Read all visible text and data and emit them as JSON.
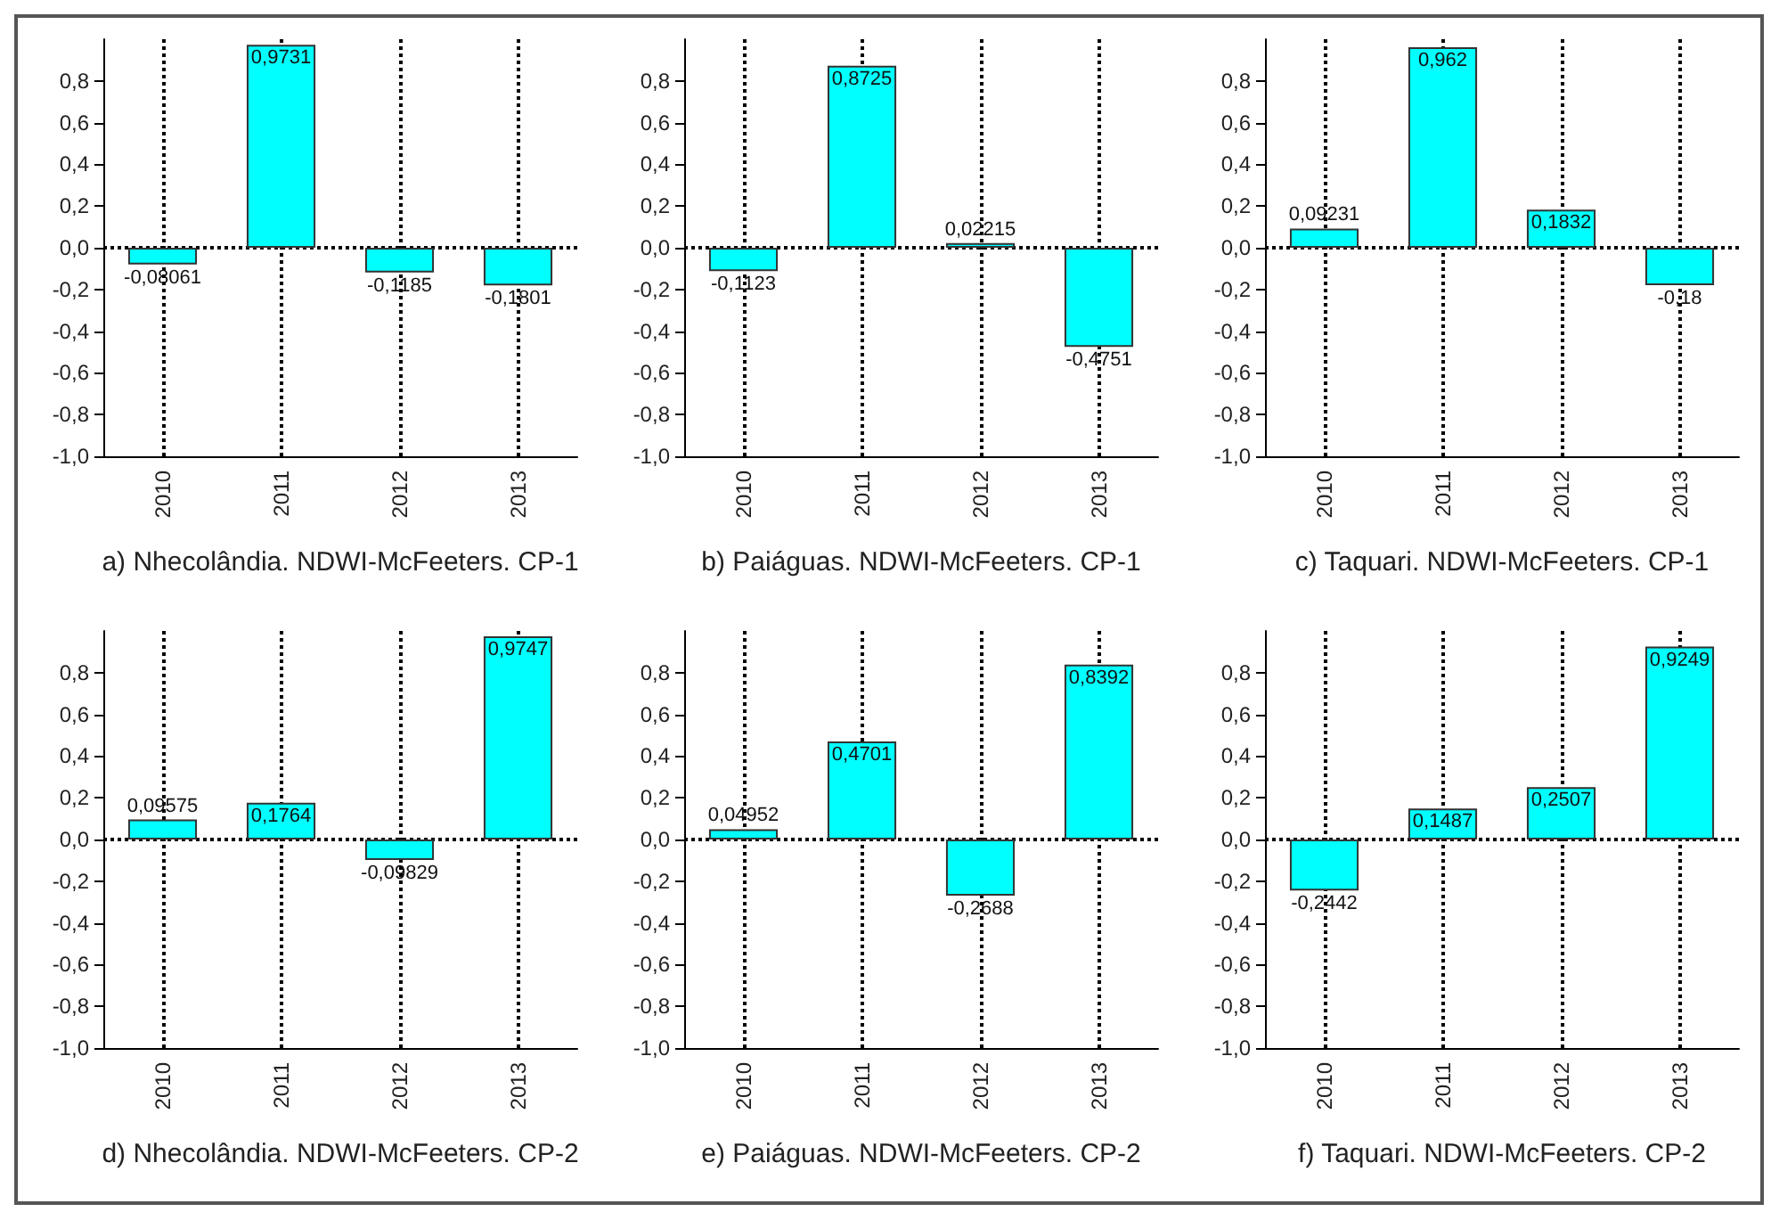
{
  "chart_data": [
    {
      "type": "bar",
      "xlabel": "a) Nhecolândia. NDWI-McFeeters. CP-1",
      "categories": [
        "2010",
        "2011",
        "2012",
        "2013"
      ],
      "values": [
        -0.08061,
        0.9731,
        -0.1185,
        -0.1801
      ],
      "value_labels": [
        "-0,08061",
        "0,9731",
        "-0,1185",
        "-0,1801"
      ],
      "color": "#00ffff",
      "ylim": [
        -1,
        1
      ],
      "yticks": [
        {
          "value": -1,
          "label": "-1,0"
        },
        {
          "value": -0.8,
          "label": "-0,8"
        },
        {
          "value": -0.6,
          "label": "-0,6"
        },
        {
          "value": -0.4,
          "label": "-0,4"
        },
        {
          "value": -0.2,
          "label": "-0,2"
        },
        {
          "value": 0,
          "label": "0,0"
        },
        {
          "value": 0.2,
          "label": "0,2"
        },
        {
          "value": 0.4,
          "label": "0,4"
        },
        {
          "value": 0.6,
          "label": "0,6"
        },
        {
          "value": 0.8,
          "label": "0,8"
        }
      ],
      "grid": "x",
      "ref_lines": [
        {
          "axis": "y",
          "value": 0,
          "line_style": "dotted"
        }
      ]
    },
    {
      "type": "bar",
      "xlabel": "b) Paiáguas. NDWI-McFeeters. CP-1",
      "categories": [
        "2010",
        "2011",
        "2012",
        "2013"
      ],
      "values": [
        -0.1123,
        0.8725,
        0.02215,
        -0.4751
      ],
      "value_labels": [
        "-0,1123",
        "0,8725",
        "0,02215",
        "-0,4751"
      ],
      "color": "#00ffff",
      "ylim": [
        -1,
        1
      ],
      "yticks": [
        {
          "value": -1,
          "label": "-1,0"
        },
        {
          "value": -0.8,
          "label": "-0,8"
        },
        {
          "value": -0.6,
          "label": "-0,6"
        },
        {
          "value": -0.4,
          "label": "-0,4"
        },
        {
          "value": -0.2,
          "label": "-0,2"
        },
        {
          "value": 0,
          "label": "0,0"
        },
        {
          "value": 0.2,
          "label": "0,2"
        },
        {
          "value": 0.4,
          "label": "0,4"
        },
        {
          "value": 0.6,
          "label": "0,6"
        },
        {
          "value": 0.8,
          "label": "0,8"
        }
      ],
      "grid": "x",
      "ref_lines": [
        {
          "axis": "y",
          "value": 0,
          "line_style": "dotted"
        }
      ]
    },
    {
      "type": "bar",
      "xlabel": "c) Taquari. NDWI-McFeeters. CP-1",
      "categories": [
        "2010",
        "2011",
        "2012",
        "2013"
      ],
      "values": [
        0.09231,
        0.962,
        0.1832,
        -0.18
      ],
      "value_labels": [
        "0,09231",
        "0,962",
        "0,1832",
        "-0,18"
      ],
      "color": "#00ffff",
      "ylim": [
        -1,
        1
      ],
      "yticks": [
        {
          "value": -1,
          "label": "-1,0"
        },
        {
          "value": -0.8,
          "label": "-0,8"
        },
        {
          "value": -0.6,
          "label": "-0,6"
        },
        {
          "value": -0.4,
          "label": "-0,4"
        },
        {
          "value": -0.2,
          "label": "-0,2"
        },
        {
          "value": 0,
          "label": "0,0"
        },
        {
          "value": 0.2,
          "label": "0,2"
        },
        {
          "value": 0.4,
          "label": "0,4"
        },
        {
          "value": 0.6,
          "label": "0,6"
        },
        {
          "value": 0.8,
          "label": "0,8"
        }
      ],
      "grid": "x",
      "ref_lines": [
        {
          "axis": "y",
          "value": 0,
          "line_style": "dotted"
        }
      ]
    },
    {
      "type": "bar",
      "xlabel": "d) Nhecolândia. NDWI-McFeeters. CP-2",
      "categories": [
        "2010",
        "2011",
        "2012",
        "2013"
      ],
      "values": [
        0.09575,
        0.1764,
        -0.09829,
        0.9747
      ],
      "value_labels": [
        "0,09575",
        "0,1764",
        "-0,09829",
        "0,9747"
      ],
      "color": "#00ffff",
      "ylim": [
        -1,
        1
      ],
      "yticks": [
        {
          "value": -1,
          "label": "-1,0"
        },
        {
          "value": -0.8,
          "label": "-0,8"
        },
        {
          "value": -0.6,
          "label": "-0,6"
        },
        {
          "value": -0.4,
          "label": "-0,4"
        },
        {
          "value": -0.2,
          "label": "-0,2"
        },
        {
          "value": 0,
          "label": "0,0"
        },
        {
          "value": 0.2,
          "label": "0,2"
        },
        {
          "value": 0.4,
          "label": "0,4"
        },
        {
          "value": 0.6,
          "label": "0,6"
        },
        {
          "value": 0.8,
          "label": "0,8"
        }
      ],
      "grid": "x",
      "ref_lines": [
        {
          "axis": "y",
          "value": 0,
          "line_style": "dotted"
        }
      ]
    },
    {
      "type": "bar",
      "xlabel": "e) Paiáguas. NDWI-McFeeters. CP-2",
      "categories": [
        "2010",
        "2011",
        "2012",
        "2013"
      ],
      "values": [
        0.04952,
        0.4701,
        -0.2688,
        0.8392
      ],
      "value_labels": [
        "0,04952",
        "0,4701",
        "-0,2688",
        "0,8392"
      ],
      "color": "#00ffff",
      "ylim": [
        -1,
        1
      ],
      "yticks": [
        {
          "value": -1,
          "label": "-1,0"
        },
        {
          "value": -0.8,
          "label": "-0,8"
        },
        {
          "value": -0.6,
          "label": "-0,6"
        },
        {
          "value": -0.4,
          "label": "-0,4"
        },
        {
          "value": -0.2,
          "label": "-0,2"
        },
        {
          "value": 0,
          "label": "0,0"
        },
        {
          "value": 0.2,
          "label": "0,2"
        },
        {
          "value": 0.4,
          "label": "0,4"
        },
        {
          "value": 0.6,
          "label": "0,6"
        },
        {
          "value": 0.8,
          "label": "0,8"
        }
      ],
      "grid": "x",
      "ref_lines": [
        {
          "axis": "y",
          "value": 0,
          "line_style": "dotted"
        }
      ]
    },
    {
      "type": "bar",
      "xlabel": "f) Taquari. NDWI-McFeeters. CP-2",
      "categories": [
        "2010",
        "2011",
        "2012",
        "2013"
      ],
      "values": [
        -0.2442,
        0.1487,
        0.2507,
        0.9249
      ],
      "value_labels": [
        "-0,2442",
        "0,1487",
        "0,2507",
        "0,9249"
      ],
      "color": "#00ffff",
      "ylim": [
        -1,
        1
      ],
      "yticks": [
        {
          "value": -1,
          "label": "-1,0"
        },
        {
          "value": -0.8,
          "label": "-0,8"
        },
        {
          "value": -0.6,
          "label": "-0,6"
        },
        {
          "value": -0.4,
          "label": "-0,4"
        },
        {
          "value": -0.2,
          "label": "-0,2"
        },
        {
          "value": 0,
          "label": "0,0"
        },
        {
          "value": 0.2,
          "label": "0,2"
        },
        {
          "value": 0.4,
          "label": "0,4"
        },
        {
          "value": 0.6,
          "label": "0,6"
        },
        {
          "value": 0.8,
          "label": "0,8"
        }
      ],
      "grid": "x",
      "ref_lines": [
        {
          "axis": "y",
          "value": 0,
          "line_style": "dotted"
        }
      ]
    }
  ]
}
